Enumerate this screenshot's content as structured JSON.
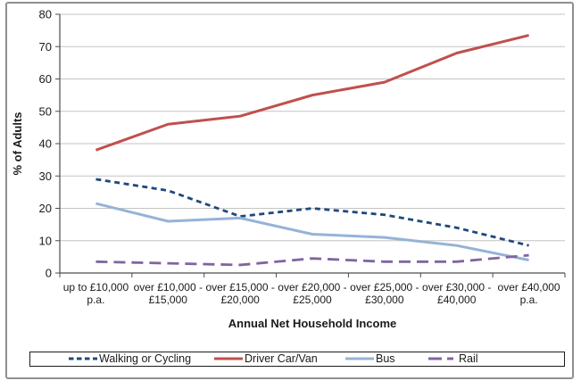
{
  "chart_data": {
    "type": "line",
    "title": "",
    "xlabel": "Annual Net Household Income",
    "ylabel": "% of Adults",
    "ylim": [
      0,
      80
    ],
    "y_ticks": [
      "0",
      "10",
      "20",
      "30",
      "40",
      "50",
      "60",
      "70",
      "80"
    ],
    "grid": "horizontal",
    "legend_position": "bottom",
    "categories": [
      "up to £10,000 p.a.",
      "over £10,000 - £15,000",
      "over £15,000 - £20,000",
      "over £20,000 - £25,000",
      "over £25,000 - £30,000",
      "over £30,000 - £40,000",
      "over £40,000 p.a."
    ],
    "category_label_lines": [
      [
        "up to £10,000",
        "p.a."
      ],
      [
        "over £10,000 -",
        "£15,000"
      ],
      [
        "over £15,000 -",
        "£20,000"
      ],
      [
        "over £20,000 -",
        "£25,000"
      ],
      [
        "over £25,000 -",
        "£30,000"
      ],
      [
        "over £30,000 -",
        "£40,000"
      ],
      [
        "over £40,000",
        "p.a."
      ]
    ],
    "series": [
      {
        "name": "Walking or Cycling",
        "color": "#1F497D",
        "line_style": "short-dash",
        "values": [
          29,
          25.5,
          17.5,
          20,
          18,
          14,
          8.5
        ]
      },
      {
        "name": "Driver Car/Van",
        "color": "#C0504D",
        "line_style": "solid",
        "values": [
          38,
          46,
          48.5,
          55,
          59,
          68,
          73.5
        ]
      },
      {
        "name": "Bus",
        "color": "#95B3D7",
        "line_style": "solid",
        "values": [
          21.5,
          16,
          17,
          12,
          11,
          8.5,
          4
        ]
      },
      {
        "name": "Rail",
        "color": "#8064A2",
        "line_style": "long-dash",
        "values": [
          3.5,
          3,
          2.5,
          4.5,
          3.5,
          3.5,
          5.5
        ]
      }
    ]
  },
  "colors": {
    "gridline": "#C3C3C3",
    "axis": "#4D4D4D",
    "text": "#1A1A1A",
    "frame": "#8F8F8F",
    "legend_border": "#1C1C1C",
    "background": "#FFFFFF"
  }
}
